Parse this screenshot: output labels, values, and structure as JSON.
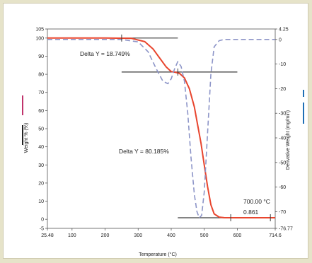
{
  "chart_data": {
    "type": "line",
    "xlabel": "Temperature (°C)",
    "ylabel_left": "Weight % (%)",
    "ylabel_right": "Derivative Weight (mg/min)",
    "x_ticks": [
      "25.48",
      "100",
      "200",
      "300",
      "400",
      "500",
      "600",
      "714.6"
    ],
    "x_tick_values": [
      25.48,
      100,
      200,
      300,
      400,
      500,
      600,
      714.6
    ],
    "y_left_ticks": [
      "-5",
      "0",
      "10",
      "20",
      "30",
      "40",
      "50",
      "60",
      "70",
      "80",
      "90",
      "100",
      "105"
    ],
    "y_left_tick_values": [
      -5,
      0,
      10,
      20,
      30,
      40,
      50,
      60,
      70,
      80,
      90,
      100,
      105
    ],
    "y_right_ticks": [
      "4.25",
      "0",
      "-10",
      "-20",
      "-30",
      "-40",
      "-50",
      "-60",
      "-70",
      "-76.77"
    ],
    "y_right_tick_values": [
      4.25,
      0,
      -10,
      -20,
      -30,
      -40,
      -50,
      -60,
      -70,
      -76.77
    ],
    "xlim": [
      25.48,
      714.6
    ],
    "ylim_left": [
      -5,
      105
    ],
    "ylim_right": [
      -76.77,
      4.25
    ],
    "series": [
      {
        "axis": "left",
        "color": "#e8452e",
        "style": "solid",
        "x": [
          25.48,
          100,
          200,
          280,
          320,
          345,
          365,
          385,
          400,
          415,
          425,
          440,
          455,
          470,
          480,
          490,
          500,
          510,
          520,
          530,
          545,
          560,
          600,
          700,
          714.6
        ],
        "y": [
          100,
          100,
          100,
          99.8,
          98,
          94,
          89,
          84,
          81.5,
          81,
          80.5,
          78,
          72,
          62,
          52,
          42,
          30,
          18,
          8,
          3,
          1.2,
          0.9,
          0.86,
          0.861,
          0.86
        ]
      },
      {
        "axis": "right",
        "color": "#8d95c8",
        "style": "dashed",
        "x": [
          25.48,
          120,
          160,
          250,
          300,
          330,
          355,
          375,
          390,
          400,
          410,
          420,
          430,
          440,
          450,
          460,
          470,
          478,
          485,
          492,
          500,
          510,
          520,
          530,
          545,
          560,
          600,
          700,
          714.6
        ],
        "y": [
          0,
          0,
          0,
          0,
          -1,
          -5,
          -12,
          -17,
          -18,
          -16,
          -12,
          -9,
          -11,
          -17,
          -30,
          -48,
          -63,
          -70,
          -72.5,
          -71.5,
          -62,
          -38,
          -14,
          -3,
          -0.5,
          0,
          0,
          0,
          0
        ]
      }
    ],
    "annotations": [
      {
        "text": "Delta Y = 18.749%"
      },
      {
        "text": "Delta Y = 80.185%"
      },
      {
        "text": "700.00 °C"
      },
      {
        "text": "0.861"
      }
    ],
    "reference_lines": [
      {
        "x1": 25.48,
        "x2": 420,
        "y": 100
      },
      {
        "x1": 250,
        "x2": 600,
        "y": 81.25
      },
      {
        "x1": 420,
        "x2": 714.6,
        "y": 0.86
      }
    ],
    "markers": [
      {
        "x": 250,
        "y": 100
      },
      {
        "x": 420,
        "y": 81.25
      },
      {
        "x": 580,
        "y": 0.86
      },
      {
        "x": 700,
        "y": 0.86
      }
    ],
    "left_indicators": [
      "#c0336b",
      "#222222"
    ],
    "right_indicators": [
      "#1f6fb5",
      "#1f6fb5"
    ]
  }
}
